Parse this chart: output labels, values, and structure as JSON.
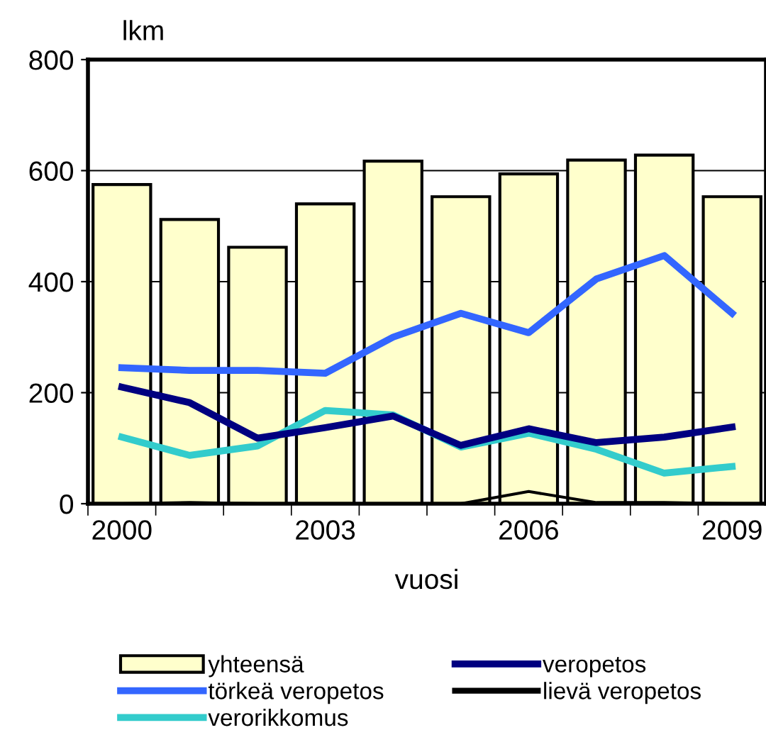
{
  "chart_data": {
    "type": "bar",
    "ylabel": "lkm",
    "xlabel": "vuosi",
    "categories": [
      "2000",
      null,
      null,
      "2003",
      null,
      null,
      "2006",
      null,
      null,
      "2009"
    ],
    "ylim": [
      0,
      800
    ],
    "yticks": [
      0,
      200,
      400,
      600,
      800
    ],
    "grid": "y",
    "legend": "bottom",
    "series": [
      {
        "name": "yhteensä",
        "color": "#ffffcc",
        "values": [
          575,
          512,
          462,
          540,
          617,
          553,
          594,
          619,
          628,
          553
        ]
      },
      {
        "name": "törkeä veropetos",
        "type": "line",
        "color": "#3366ff",
        "values": [
          245,
          240,
          240,
          235,
          300,
          343,
          308,
          405,
          447,
          343
        ]
      },
      {
        "name": "verorikkomus",
        "type": "line",
        "color": "#33cccc",
        "values": [
          120,
          87,
          104,
          168,
          160,
          102,
          127,
          98,
          55,
          67
        ]
      },
      {
        "name": "veropetos",
        "type": "line",
        "color": "#000080",
        "values": [
          210,
          182,
          118,
          137,
          158,
          105,
          135,
          110,
          120,
          138
        ]
      },
      {
        "name": "lievä veropetos",
        "type": "line",
        "color": "#000000",
        "values": [
          0,
          2,
          0,
          0,
          0,
          0,
          22,
          2,
          2,
          0
        ]
      }
    ]
  }
}
